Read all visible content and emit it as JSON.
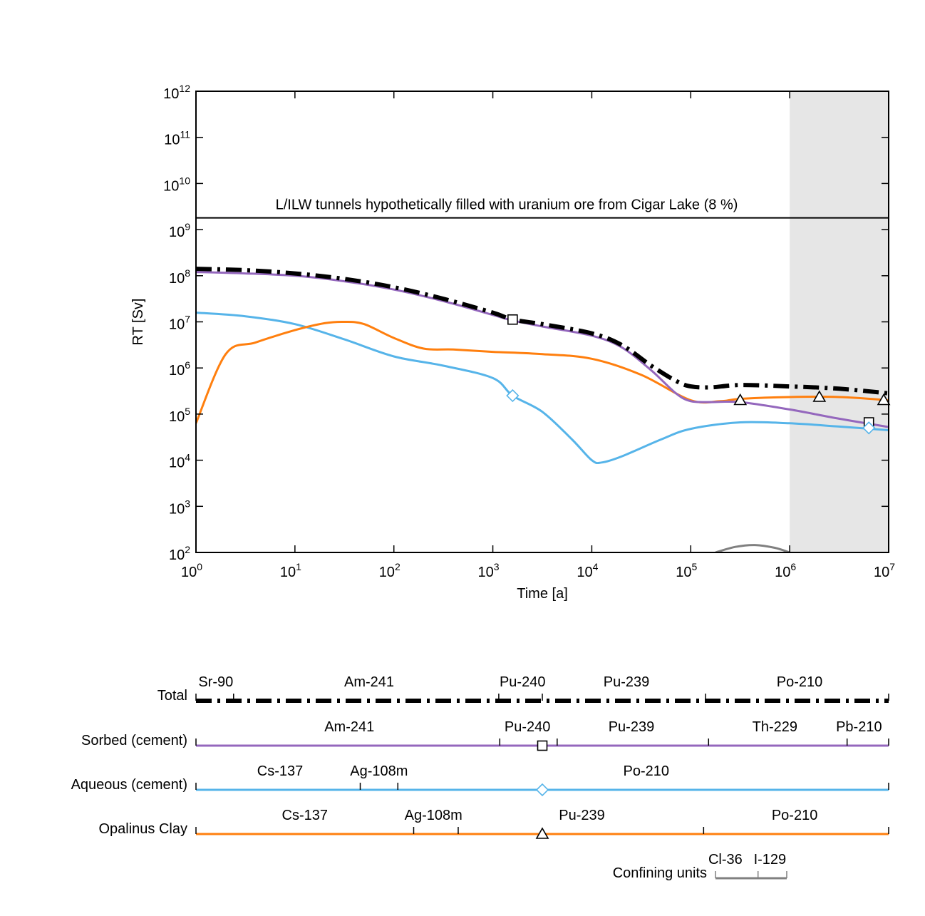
{
  "chart_data": {
    "type": "line",
    "title": "",
    "xlabel": "Time [a]",
    "ylabel": "RT [Sv]",
    "xscale": "log",
    "yscale": "log",
    "xlim": [
      1,
      10000000
    ],
    "ylim": [
      100,
      1000000000000
    ],
    "x_ticks": [
      {
        "base": "10",
        "exp": "0",
        "value": 1
      },
      {
        "base": "10",
        "exp": "1",
        "value": 10
      },
      {
        "base": "10",
        "exp": "2",
        "value": 100
      },
      {
        "base": "10",
        "exp": "3",
        "value": 1000
      },
      {
        "base": "10",
        "exp": "4",
        "value": 10000
      },
      {
        "base": "10",
        "exp": "5",
        "value": 100000
      },
      {
        "base": "10",
        "exp": "6",
        "value": 1000000
      },
      {
        "base": "10",
        "exp": "7",
        "value": 10000000
      }
    ],
    "y_ticks": [
      {
        "base": "10",
        "exp": "2",
        "value": 100
      },
      {
        "base": "10",
        "exp": "3",
        "value": 1000
      },
      {
        "base": "10",
        "exp": "4",
        "value": 10000
      },
      {
        "base": "10",
        "exp": "5",
        "value": 100000
      },
      {
        "base": "10",
        "exp": "6",
        "value": 1000000
      },
      {
        "base": "10",
        "exp": "7",
        "value": 10000000
      },
      {
        "base": "10",
        "exp": "8",
        "value": 100000000
      },
      {
        "base": "10",
        "exp": "9",
        "value": 1000000000
      },
      {
        "base": "10",
        "exp": "10",
        "value": 10000000000
      },
      {
        "base": "10",
        "exp": "11",
        "value": 100000000000
      },
      {
        "base": "10",
        "exp": "12",
        "value": 1000000000000
      }
    ],
    "grid": false,
    "shaded_region": {
      "x_from": 1000000,
      "x_to": 10000000,
      "color": "#e6e6e6"
    },
    "reference_line": {
      "y": 1800000000,
      "label": "L/ILW tunnels hypothetically filled with uranium ore from Cigar Lake (8 %)"
    },
    "series": [
      {
        "name": "Total",
        "color": "#000000",
        "style": "dash-dot",
        "marker": "none",
        "points_log10": [
          [
            0,
            8.15
          ],
          [
            0.5,
            8.12
          ],
          [
            1,
            8.05
          ],
          [
            1.5,
            7.93
          ],
          [
            2,
            7.75
          ],
          [
            2.5,
            7.5
          ],
          [
            3,
            7.2
          ],
          [
            3.2,
            7.05
          ],
          [
            3.5,
            6.95
          ],
          [
            4,
            6.75
          ],
          [
            4.3,
            6.5
          ],
          [
            4.6,
            6.05
          ],
          [
            4.85,
            5.72
          ],
          [
            5.0,
            5.6
          ],
          [
            5.2,
            5.58
          ],
          [
            5.5,
            5.63
          ],
          [
            6,
            5.6
          ],
          [
            6.5,
            5.55
          ],
          [
            7,
            5.45
          ]
        ]
      },
      {
        "name": "Sorbed (cement)",
        "color": "#9467bd",
        "style": "solid",
        "marker": "square",
        "marker_at_log10": [
          [
            3.2,
            7.05
          ],
          [
            6.8,
            4.82
          ]
        ],
        "points_log10": [
          [
            0,
            8.08
          ],
          [
            0.5,
            8.05
          ],
          [
            1,
            8.0
          ],
          [
            1.5,
            7.88
          ],
          [
            2,
            7.7
          ],
          [
            2.5,
            7.45
          ],
          [
            3,
            7.15
          ],
          [
            3.2,
            7.03
          ],
          [
            3.5,
            6.9
          ],
          [
            4,
            6.7
          ],
          [
            4.3,
            6.45
          ],
          [
            4.6,
            5.95
          ],
          [
            4.85,
            5.45
          ],
          [
            5.0,
            5.28
          ],
          [
            5.2,
            5.26
          ],
          [
            5.5,
            5.26
          ],
          [
            6,
            5.1
          ],
          [
            6.5,
            4.9
          ],
          [
            7,
            4.72
          ]
        ]
      },
      {
        "name": "Aqueous (cement)",
        "color": "#56b4e9",
        "style": "solid",
        "marker": "diamond",
        "marker_at_log10": [
          [
            3.2,
            5.4
          ],
          [
            6.8,
            4.7
          ]
        ],
        "points_log10": [
          [
            0,
            7.2
          ],
          [
            0.5,
            7.12
          ],
          [
            1,
            6.95
          ],
          [
            1.5,
            6.62
          ],
          [
            2,
            6.25
          ],
          [
            2.5,
            6.05
          ],
          [
            3,
            5.78
          ],
          [
            3.2,
            5.4
          ],
          [
            3.5,
            5.05
          ],
          [
            3.8,
            4.45
          ],
          [
            4.0,
            4.0
          ],
          [
            4.1,
            3.95
          ],
          [
            4.3,
            4.08
          ],
          [
            4.7,
            4.45
          ],
          [
            5.0,
            4.68
          ],
          [
            5.5,
            4.82
          ],
          [
            6,
            4.8
          ],
          [
            6.5,
            4.73
          ],
          [
            7,
            4.65
          ]
        ]
      },
      {
        "name": "Opalinus Clay",
        "color": "#ff7f0e",
        "style": "solid",
        "marker": "triangle",
        "marker_at_log10": [
          [
            5.5,
            5.3
          ],
          [
            6.3,
            5.37
          ],
          [
            6.95,
            5.3
          ]
        ],
        "points_log10": [
          [
            0,
            4.8
          ],
          [
            0.3,
            6.3
          ],
          [
            0.6,
            6.55
          ],
          [
            1,
            6.82
          ],
          [
            1.3,
            6.97
          ],
          [
            1.5,
            7.0
          ],
          [
            1.7,
            6.95
          ],
          [
            2,
            6.65
          ],
          [
            2.3,
            6.42
          ],
          [
            2.6,
            6.4
          ],
          [
            3,
            6.35
          ],
          [
            3.5,
            6.3
          ],
          [
            4,
            6.2
          ],
          [
            4.5,
            5.85
          ],
          [
            5.0,
            5.3
          ],
          [
            5.3,
            5.28
          ],
          [
            5.5,
            5.33
          ],
          [
            6,
            5.37
          ],
          [
            6.5,
            5.37
          ],
          [
            7,
            5.3
          ]
        ]
      },
      {
        "name": "Confining units",
        "color": "#808080",
        "style": "solid",
        "marker": "none",
        "points_log10": [
          [
            5.25,
            2.0
          ],
          [
            5.45,
            2.12
          ],
          [
            5.65,
            2.16
          ],
          [
            5.85,
            2.1
          ],
          [
            6.0,
            2.0
          ]
        ]
      }
    ]
  },
  "legend_rows": [
    {
      "label": "Total",
      "color": "#000000",
      "style": "dash-dot",
      "nuclides": [
        "Sr-90",
        "Am-241",
        "Pu-240",
        "Pu-239",
        "Po-210"
      ],
      "nuclide_positions_log10": [
        0.2,
        1.75,
        3.3,
        4.35,
        6.1
      ],
      "boundaries_log10": [
        0,
        0.38,
        3.06,
        3.5,
        5.15,
        7
      ],
      "marker": "none"
    },
    {
      "label": "Sorbed (cement)",
      "color": "#9467bd",
      "style": "solid",
      "nuclides": [
        "Am-241",
        "Pu-240",
        "Pu-239",
        "Th-229",
        "Pb-210"
      ],
      "nuclide_positions_log10": [
        1.55,
        3.35,
        4.4,
        5.85,
        6.7
      ],
      "boundaries_log10": [
        0,
        3.07,
        3.65,
        5.18,
        6.58,
        7
      ],
      "marker": "square"
    },
    {
      "label": "Aqueous (cement)",
      "color": "#56b4e9",
      "style": "solid",
      "nuclides": [
        "Cs-137",
        "Ag-108m",
        "Po-210"
      ],
      "nuclide_positions_log10": [
        0.85,
        1.85,
        4.55
      ],
      "boundaries_log10": [
        0,
        1.66,
        2.04,
        7
      ],
      "marker": "diamond"
    },
    {
      "label": "Opalinus Clay",
      "color": "#ff7f0e",
      "style": "solid",
      "nuclides": [
        "Cs-137",
        "Ag-108m",
        "Pu-239",
        "Po-210"
      ],
      "nuclide_positions_log10": [
        1.1,
        2.4,
        3.9,
        6.05
      ],
      "boundaries_log10": [
        0,
        2.2,
        2.65,
        5.13,
        7
      ],
      "marker": "triangle"
    },
    {
      "label": "Confining units",
      "color": "#808080",
      "style": "solid",
      "nuclides": [
        "Cl-36",
        "I-129"
      ],
      "nuclide_positions_log10": [
        5.35,
        5.8
      ],
      "boundaries_log10": [
        5.25,
        5.68,
        5.97
      ],
      "marker": "none"
    }
  ]
}
